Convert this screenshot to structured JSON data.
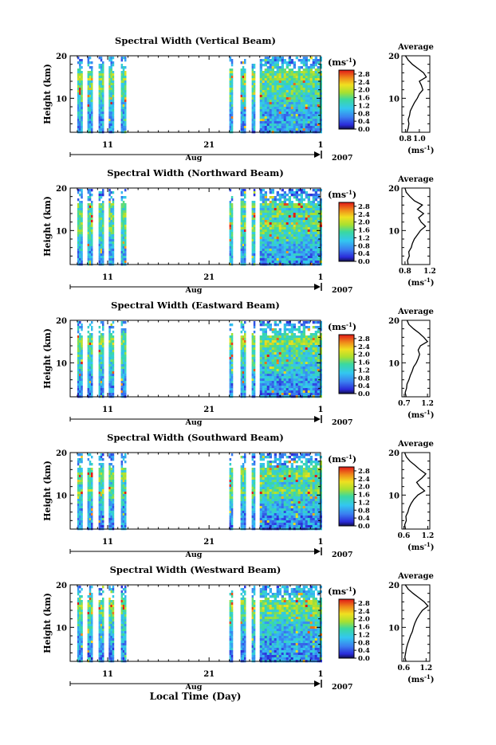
{
  "figure": {
    "xaxis_title": "Local Time (Day)",
    "month_label": "Aug",
    "year_label": "2007",
    "day_ticks": [
      "11",
      "21",
      "1"
    ],
    "height_label": "Height (km)",
    "unit_label": "(ms⁻¹)",
    "unit_base": "(ms",
    "unit_exp": "-1",
    "average_title": "Average"
  },
  "chart_data": [
    {
      "type": "heatmap",
      "title": "Spectral Width (Vertical Beam)",
      "ylabel": "Height (km)",
      "ylim": [
        2,
        20
      ],
      "y_ticks": [
        "20",
        "10"
      ],
      "colorbar_ticks": [
        "2.8",
        "2.4",
        "2.0",
        "1.6",
        "1.2",
        "0.8",
        "0.4",
        "0.0"
      ],
      "colorbar_range": [
        0,
        3.0
      ],
      "avg_profile": {
        "xlabel": "(ms⁻¹)",
        "x_ticks": [
          "0.8",
          "1.0"
        ],
        "xlim": [
          0.75,
          1.15
        ],
        "height_km": [
          2,
          3,
          4,
          5,
          6,
          7,
          8,
          9,
          10,
          11,
          12,
          13,
          14,
          15,
          16,
          17,
          18,
          19,
          20
        ],
        "value": [
          0.82,
          0.84,
          0.85,
          0.84,
          0.86,
          0.87,
          0.9,
          0.93,
          0.97,
          1.0,
          1.05,
          1.03,
          1.0,
          1.1,
          1.06,
          0.98,
          0.9,
          0.84,
          0.8
        ]
      }
    },
    {
      "type": "heatmap",
      "title": "Spectral Width (Northward Beam)",
      "ylabel": "Height (km)",
      "ylim": [
        2,
        20
      ],
      "y_ticks": [
        "20",
        "10"
      ],
      "colorbar_ticks": [
        "2.8",
        "2.4",
        "2.0",
        "1.6",
        "1.2",
        "0.8",
        "0.4",
        "0.0"
      ],
      "colorbar_range": [
        0,
        3.0
      ],
      "avg_profile": {
        "xlabel": "(ms⁻¹)",
        "x_ticks": [
          "0.8",
          "1.2"
        ],
        "xlim": [
          0.75,
          1.2
        ],
        "height_km": [
          2,
          3,
          4,
          5,
          6,
          7,
          8,
          9,
          10,
          11,
          12,
          13,
          14,
          15,
          16,
          17,
          18,
          19,
          20
        ],
        "value": [
          0.85,
          0.84,
          0.87,
          0.86,
          0.9,
          0.92,
          0.95,
          1.0,
          1.05,
          1.13,
          1.06,
          1.02,
          1.1,
          1.0,
          1.08,
          0.95,
          0.88,
          0.82,
          0.8
        ]
      }
    },
    {
      "type": "heatmap",
      "title": "Spectral Width (Eastward Beam)",
      "ylabel": "Height (km)",
      "ylim": [
        2,
        20
      ],
      "y_ticks": [
        "20",
        "10"
      ],
      "colorbar_ticks": [
        "2.8",
        "2.4",
        "2.0",
        "1.6",
        "1.2",
        "0.8",
        "0.4",
        "0.0"
      ],
      "colorbar_range": [
        0,
        3.0
      ],
      "avg_profile": {
        "xlabel": "(ms⁻¹)",
        "x_ticks": [
          "0.7",
          "1.2"
        ],
        "xlim": [
          0.65,
          1.25
        ],
        "height_km": [
          2,
          3,
          4,
          5,
          6,
          7,
          8,
          9,
          10,
          11,
          12,
          13,
          14,
          15,
          16,
          17,
          18,
          19,
          20
        ],
        "value": [
          0.74,
          0.72,
          0.75,
          0.76,
          0.8,
          0.83,
          0.87,
          0.9,
          0.96,
          1.0,
          1.03,
          1.0,
          1.05,
          1.2,
          1.12,
          1.02,
          0.9,
          0.8,
          0.76
        ]
      }
    },
    {
      "type": "heatmap",
      "title": "Spectral Width (Southward Beam)",
      "ylabel": "Height (km)",
      "ylim": [
        2,
        20
      ],
      "y_ticks": [
        "20",
        "10"
      ],
      "colorbar_ticks": [
        "2.8",
        "2.4",
        "2.0",
        "1.6",
        "1.2",
        "0.8",
        "0.4",
        "0.0"
      ],
      "colorbar_range": [
        0,
        3.0
      ],
      "avg_profile": {
        "xlabel": "(ms⁻¹)",
        "x_ticks": [
          "0.6",
          "1.2"
        ],
        "xlim": [
          0.55,
          1.25
        ],
        "height_km": [
          2,
          3,
          4,
          5,
          6,
          7,
          8,
          9,
          10,
          11,
          12,
          13,
          14,
          15,
          16,
          17,
          18,
          19,
          20
        ],
        "value": [
          0.64,
          0.62,
          0.66,
          0.65,
          0.7,
          0.73,
          0.78,
          0.85,
          0.95,
          1.12,
          1.0,
          0.92,
          1.05,
          1.15,
          1.0,
          0.88,
          0.75,
          0.66,
          0.62
        ]
      }
    },
    {
      "type": "heatmap",
      "title": "Spectral Width (Westward Beam)",
      "ylabel": "Height (km)",
      "ylim": [
        2,
        20
      ],
      "y_ticks": [
        "20",
        "10"
      ],
      "colorbar_ticks": [
        "2.8",
        "2.4",
        "2.0",
        "1.6",
        "1.2",
        "0.8",
        "0.4",
        "0.0"
      ],
      "colorbar_range": [
        0,
        3.0
      ],
      "avg_profile": {
        "xlabel": "(ms⁻¹)",
        "x_ticks": [
          "0.6",
          "1.2"
        ],
        "xlim": [
          0.55,
          1.3
        ],
        "height_km": [
          2,
          3,
          4,
          5,
          6,
          7,
          8,
          9,
          10,
          11,
          12,
          13,
          14,
          15,
          16,
          17,
          18,
          19,
          20
        ],
        "value": [
          0.66,
          0.63,
          0.65,
          0.67,
          0.7,
          0.74,
          0.78,
          0.83,
          0.86,
          0.9,
          0.95,
          1.02,
          1.1,
          1.25,
          1.15,
          1.0,
          0.85,
          0.72,
          0.64
        ]
      }
    }
  ]
}
